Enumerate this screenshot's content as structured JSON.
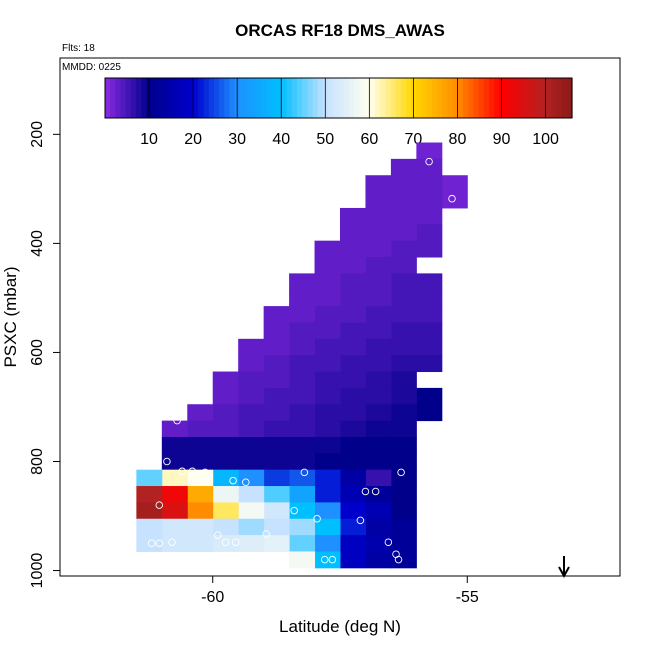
{
  "chart_data": {
    "type": "heatmap",
    "title": "ORCAS RF18 DMS_AWAS",
    "flights_label": "Flts: 18",
    "date_label": "MMDD: 0225",
    "xlabel": "Latitude (deg N)",
    "ylabel": "PSXC (mbar)",
    "xlim": [
      -63,
      -52
    ],
    "ylim": [
      1010,
      60
    ],
    "x_ticks": [
      -60,
      -55
    ],
    "y_ticks": [
      200,
      400,
      600,
      800,
      1000
    ],
    "colorbar": {
      "ticks": [
        10,
        20,
        30,
        40,
        50,
        60,
        70,
        80,
        90,
        100
      ],
      "min": 0,
      "max": 106,
      "stops": [
        {
          "v": 0,
          "c": "#8a2be2"
        },
        {
          "v": 10,
          "c": "#00008b"
        },
        {
          "v": 20,
          "c": "#0000cd"
        },
        {
          "v": 30,
          "c": "#1e90ff"
        },
        {
          "v": 40,
          "c": "#00bfff"
        },
        {
          "v": 50,
          "c": "#c6e2ff"
        },
        {
          "v": 60,
          "c": "#fffff0"
        },
        {
          "v": 70,
          "c": "#ffd700"
        },
        {
          "v": 80,
          "c": "#ff8c00"
        },
        {
          "v": 90,
          "c": "#ff0000"
        },
        {
          "v": 100,
          "c": "#b22222"
        },
        {
          "v": 106,
          "c": "#8b1a1a"
        }
      ]
    },
    "arrow_latitude": -53.1,
    "bins": {
      "lat_start": -61.25,
      "lat_width": 0.5,
      "p_start": 207.5,
      "p_width": 30
    },
    "cells": [
      {
        "lat": -55.75,
        "p": 230,
        "v": 2
      },
      {
        "lat": -55.75,
        "p": 260,
        "v": 3
      },
      {
        "lat": -56.25,
        "p": 260,
        "v": 3
      },
      {
        "lat": -55.25,
        "p": 290,
        "v": 2
      },
      {
        "lat": -55.75,
        "p": 290,
        "v": 3
      },
      {
        "lat": -56.25,
        "p": 290,
        "v": 3
      },
      {
        "lat": -56.75,
        "p": 290,
        "v": 3
      },
      {
        "lat": -55.25,
        "p": 320,
        "v": 2
      },
      {
        "lat": -55.75,
        "p": 320,
        "v": 3
      },
      {
        "lat": -56.25,
        "p": 320,
        "v": 3
      },
      {
        "lat": -56.75,
        "p": 320,
        "v": 3
      },
      {
        "lat": -55.75,
        "p": 350,
        "v": 3
      },
      {
        "lat": -56.25,
        "p": 350,
        "v": 3
      },
      {
        "lat": -56.75,
        "p": 350,
        "v": 3
      },
      {
        "lat": -57.25,
        "p": 350,
        "v": 3
      },
      {
        "lat": -55.75,
        "p": 380,
        "v": 4
      },
      {
        "lat": -56.25,
        "p": 380,
        "v": 3
      },
      {
        "lat": -56.75,
        "p": 380,
        "v": 3
      },
      {
        "lat": -57.25,
        "p": 380,
        "v": 3
      },
      {
        "lat": -55.75,
        "p": 410,
        "v": 4
      },
      {
        "lat": -56.25,
        "p": 410,
        "v": 4
      },
      {
        "lat": -56.75,
        "p": 410,
        "v": 3
      },
      {
        "lat": -57.25,
        "p": 410,
        "v": 3
      },
      {
        "lat": -57.75,
        "p": 410,
        "v": 3
      },
      {
        "lat": -56.25,
        "p": 440,
        "v": 4
      },
      {
        "lat": -56.75,
        "p": 440,
        "v": 4
      },
      {
        "lat": -57.25,
        "p": 440,
        "v": 3
      },
      {
        "lat": -57.75,
        "p": 440,
        "v": 3
      },
      {
        "lat": -55.75,
        "p": 470,
        "v": 5
      },
      {
        "lat": -56.25,
        "p": 470,
        "v": 5
      },
      {
        "lat": -56.75,
        "p": 470,
        "v": 4
      },
      {
        "lat": -57.25,
        "p": 470,
        "v": 4
      },
      {
        "lat": -57.75,
        "p": 470,
        "v": 3
      },
      {
        "lat": -58.25,
        "p": 470,
        "v": 3
      },
      {
        "lat": -55.75,
        "p": 500,
        "v": 5
      },
      {
        "lat": -56.25,
        "p": 500,
        "v": 5
      },
      {
        "lat": -56.75,
        "p": 500,
        "v": 4
      },
      {
        "lat": -57.25,
        "p": 500,
        "v": 4
      },
      {
        "lat": -57.75,
        "p": 500,
        "v": 3
      },
      {
        "lat": -58.25,
        "p": 500,
        "v": 3
      },
      {
        "lat": -55.75,
        "p": 530,
        "v": 5
      },
      {
        "lat": -56.25,
        "p": 530,
        "v": 5
      },
      {
        "lat": -56.75,
        "p": 530,
        "v": 5
      },
      {
        "lat": -57.25,
        "p": 530,
        "v": 4
      },
      {
        "lat": -57.75,
        "p": 530,
        "v": 4
      },
      {
        "lat": -58.25,
        "p": 530,
        "v": 3
      },
      {
        "lat": -58.75,
        "p": 530,
        "v": 3
      },
      {
        "lat": -55.75,
        "p": 560,
        "v": 6
      },
      {
        "lat": -56.25,
        "p": 560,
        "v": 6
      },
      {
        "lat": -56.75,
        "p": 560,
        "v": 5
      },
      {
        "lat": -57.25,
        "p": 560,
        "v": 5
      },
      {
        "lat": -57.75,
        "p": 560,
        "v": 4
      },
      {
        "lat": -58.25,
        "p": 560,
        "v": 4
      },
      {
        "lat": -58.75,
        "p": 560,
        "v": 3
      },
      {
        "lat": -55.75,
        "p": 590,
        "v": 6
      },
      {
        "lat": -56.25,
        "p": 590,
        "v": 6
      },
      {
        "lat": -56.75,
        "p": 590,
        "v": 6
      },
      {
        "lat": -57.25,
        "p": 590,
        "v": 5
      },
      {
        "lat": -57.75,
        "p": 590,
        "v": 5
      },
      {
        "lat": -58.25,
        "p": 590,
        "v": 4
      },
      {
        "lat": -58.75,
        "p": 590,
        "v": 3
      },
      {
        "lat": -59.25,
        "p": 590,
        "v": 3
      },
      {
        "lat": -55.75,
        "p": 620,
        "v": 7
      },
      {
        "lat": -56.25,
        "p": 620,
        "v": 7
      },
      {
        "lat": -56.75,
        "p": 620,
        "v": 6
      },
      {
        "lat": -57.25,
        "p": 620,
        "v": 6
      },
      {
        "lat": -57.75,
        "p": 620,
        "v": 5
      },
      {
        "lat": -58.25,
        "p": 620,
        "v": 5
      },
      {
        "lat": -58.75,
        "p": 620,
        "v": 4
      },
      {
        "lat": -59.25,
        "p": 620,
        "v": 3
      },
      {
        "lat": -56.25,
        "p": 650,
        "v": 8
      },
      {
        "lat": -56.75,
        "p": 650,
        "v": 7
      },
      {
        "lat": -57.25,
        "p": 650,
        "v": 6
      },
      {
        "lat": -57.75,
        "p": 650,
        "v": 6
      },
      {
        "lat": -58.25,
        "p": 650,
        "v": 5
      },
      {
        "lat": -58.75,
        "p": 650,
        "v": 4
      },
      {
        "lat": -59.25,
        "p": 650,
        "v": 4
      },
      {
        "lat": -59.75,
        "p": 650,
        "v": 3
      },
      {
        "lat": -55.75,
        "p": 680,
        "v": 10
      },
      {
        "lat": -56.25,
        "p": 680,
        "v": 8
      },
      {
        "lat": -56.75,
        "p": 680,
        "v": 7
      },
      {
        "lat": -57.25,
        "p": 680,
        "v": 7
      },
      {
        "lat": -57.75,
        "p": 680,
        "v": 6
      },
      {
        "lat": -58.25,
        "p": 680,
        "v": 5
      },
      {
        "lat": -58.75,
        "p": 680,
        "v": 5
      },
      {
        "lat": -59.25,
        "p": 680,
        "v": 4
      },
      {
        "lat": -59.75,
        "p": 680,
        "v": 3
      },
      {
        "lat": -55.75,
        "p": 710,
        "v": 10
      },
      {
        "lat": -56.25,
        "p": 710,
        "v": 9
      },
      {
        "lat": -56.75,
        "p": 710,
        "v": 8
      },
      {
        "lat": -57.25,
        "p": 710,
        "v": 7
      },
      {
        "lat": -57.75,
        "p": 710,
        "v": 7
      },
      {
        "lat": -58.25,
        "p": 710,
        "v": 6
      },
      {
        "lat": -58.75,
        "p": 710,
        "v": 5
      },
      {
        "lat": -59.25,
        "p": 710,
        "v": 5
      },
      {
        "lat": -59.75,
        "p": 710,
        "v": 4
      },
      {
        "lat": -60.25,
        "p": 710,
        "v": 3
      },
      {
        "lat": -56.25,
        "p": 740,
        "v": 9
      },
      {
        "lat": -56.75,
        "p": 740,
        "v": 9
      },
      {
        "lat": -57.25,
        "p": 740,
        "v": 8
      },
      {
        "lat": -57.75,
        "p": 740,
        "v": 7
      },
      {
        "lat": -58.25,
        "p": 740,
        "v": 6
      },
      {
        "lat": -58.75,
        "p": 740,
        "v": 6
      },
      {
        "lat": -59.25,
        "p": 740,
        "v": 5
      },
      {
        "lat": -59.75,
        "p": 740,
        "v": 4
      },
      {
        "lat": -60.25,
        "p": 740,
        "v": 4
      },
      {
        "lat": -60.75,
        "p": 740,
        "v": 3
      },
      {
        "lat": -56.25,
        "p": 770,
        "v": 10
      },
      {
        "lat": -56.75,
        "p": 770,
        "v": 10
      },
      {
        "lat": -57.25,
        "p": 770,
        "v": 10
      },
      {
        "lat": -57.75,
        "p": 770,
        "v": 9
      },
      {
        "lat": -58.25,
        "p": 770,
        "v": 9
      },
      {
        "lat": -58.75,
        "p": 770,
        "v": 9
      },
      {
        "lat": -59.25,
        "p": 770,
        "v": 9
      },
      {
        "lat": -59.75,
        "p": 770,
        "v": 9
      },
      {
        "lat": -60.25,
        "p": 770,
        "v": 9
      },
      {
        "lat": -60.75,
        "p": 770,
        "v": 9
      },
      {
        "lat": -56.25,
        "p": 800,
        "v": 10
      },
      {
        "lat": -56.75,
        "p": 800,
        "v": 10
      },
      {
        "lat": -57.25,
        "p": 800,
        "v": 10
      },
      {
        "lat": -57.75,
        "p": 800,
        "v": 10
      },
      {
        "lat": -58.25,
        "p": 800,
        "v": 9
      },
      {
        "lat": -58.75,
        "p": 800,
        "v": 9
      },
      {
        "lat": -59.25,
        "p": 800,
        "v": 9
      },
      {
        "lat": -59.75,
        "p": 800,
        "v": 9
      },
      {
        "lat": -60.25,
        "p": 800,
        "v": 9
      },
      {
        "lat": -60.75,
        "p": 800,
        "v": 9
      },
      {
        "lat": -56.25,
        "p": 830,
        "v": 10
      },
      {
        "lat": -56.75,
        "p": 830,
        "v": 6
      },
      {
        "lat": -57.25,
        "p": 830,
        "v": 14
      },
      {
        "lat": -57.75,
        "p": 830,
        "v": 22
      },
      {
        "lat": -58.25,
        "p": 830,
        "v": 26
      },
      {
        "lat": -58.75,
        "p": 830,
        "v": 24
      },
      {
        "lat": -59.25,
        "p": 830,
        "v": 30
      },
      {
        "lat": -59.75,
        "p": 830,
        "v": 38
      },
      {
        "lat": -60.25,
        "p": 830,
        "v": 60
      },
      {
        "lat": -60.75,
        "p": 830,
        "v": 62
      },
      {
        "lat": -61.25,
        "p": 830,
        "v": 45
      },
      {
        "lat": -56.25,
        "p": 860,
        "v": 10
      },
      {
        "lat": -56.75,
        "p": 860,
        "v": 12
      },
      {
        "lat": -57.25,
        "p": 860,
        "v": 16
      },
      {
        "lat": -57.75,
        "p": 860,
        "v": 22
      },
      {
        "lat": -58.25,
        "p": 860,
        "v": 34
      },
      {
        "lat": -58.75,
        "p": 860,
        "v": 44
      },
      {
        "lat": -59.25,
        "p": 860,
        "v": 50
      },
      {
        "lat": -59.75,
        "p": 860,
        "v": 57
      },
      {
        "lat": -60.25,
        "p": 860,
        "v": 76
      },
      {
        "lat": -60.75,
        "p": 860,
        "v": 92
      },
      {
        "lat": -61.25,
        "p": 860,
        "v": 100
      },
      {
        "lat": -56.25,
        "p": 890,
        "v": 10
      },
      {
        "lat": -56.75,
        "p": 890,
        "v": 16
      },
      {
        "lat": -57.25,
        "p": 890,
        "v": 20
      },
      {
        "lat": -57.75,
        "p": 890,
        "v": 30
      },
      {
        "lat": -58.25,
        "p": 890,
        "v": 40
      },
      {
        "lat": -58.75,
        "p": 890,
        "v": 52
      },
      {
        "lat": -59.25,
        "p": 890,
        "v": 58
      },
      {
        "lat": -59.75,
        "p": 890,
        "v": 66
      },
      {
        "lat": -60.25,
        "p": 890,
        "v": 80
      },
      {
        "lat": -60.75,
        "p": 890,
        "v": 95
      },
      {
        "lat": -61.25,
        "p": 890,
        "v": 102
      },
      {
        "lat": -56.25,
        "p": 920,
        "v": 12
      },
      {
        "lat": -56.75,
        "p": 920,
        "v": 14
      },
      {
        "lat": -57.25,
        "p": 920,
        "v": 22
      },
      {
        "lat": -57.75,
        "p": 920,
        "v": 40
      },
      {
        "lat": -58.25,
        "p": 920,
        "v": 48
      },
      {
        "lat": -58.75,
        "p": 920,
        "v": 50
      },
      {
        "lat": -59.25,
        "p": 920,
        "v": 48
      },
      {
        "lat": -59.75,
        "p": 920,
        "v": 50
      },
      {
        "lat": -60.25,
        "p": 920,
        "v": 52
      },
      {
        "lat": -60.75,
        "p": 920,
        "v": 52
      },
      {
        "lat": -61.25,
        "p": 920,
        "v": 50
      },
      {
        "lat": -56.25,
        "p": 950,
        "v": 12
      },
      {
        "lat": -56.75,
        "p": 950,
        "v": 15
      },
      {
        "lat": -57.25,
        "p": 950,
        "v": 18
      },
      {
        "lat": -57.75,
        "p": 950,
        "v": 30
      },
      {
        "lat": -58.25,
        "p": 950,
        "v": 45
      },
      {
        "lat": -58.75,
        "p": 950,
        "v": 55
      },
      {
        "lat": -59.25,
        "p": 950,
        "v": 54
      },
      {
        "lat": -59.75,
        "p": 950,
        "v": 53
      },
      {
        "lat": -60.25,
        "p": 950,
        "v": 52
      },
      {
        "lat": -60.75,
        "p": 950,
        "v": 52
      },
      {
        "lat": -61.25,
        "p": 950,
        "v": 50
      },
      {
        "lat": -56.25,
        "p": 980,
        "v": 12
      },
      {
        "lat": -56.75,
        "p": 980,
        "v": 14
      },
      {
        "lat": -57.25,
        "p": 980,
        "v": 18
      },
      {
        "lat": -57.75,
        "p": 980,
        "v": 40
      },
      {
        "lat": -58.25,
        "p": 980,
        "v": 58
      }
    ],
    "points": [
      {
        "lat": -55.75,
        "p": 250
      },
      {
        "lat": -55.3,
        "p": 318
      },
      {
        "lat": -60.7,
        "p": 725
      },
      {
        "lat": -60.9,
        "p": 800
      },
      {
        "lat": -60.6,
        "p": 818
      },
      {
        "lat": -60.4,
        "p": 818
      },
      {
        "lat": -60.15,
        "p": 820
      },
      {
        "lat": -60.2,
        "p": 833
      },
      {
        "lat": -59.6,
        "p": 835
      },
      {
        "lat": -59.35,
        "p": 838
      },
      {
        "lat": -58.2,
        "p": 820
      },
      {
        "lat": -56.3,
        "p": 820
      },
      {
        "lat": -57.0,
        "p": 855
      },
      {
        "lat": -56.8,
        "p": 855
      },
      {
        "lat": -61.05,
        "p": 880
      },
      {
        "lat": -58.4,
        "p": 890
      },
      {
        "lat": -57.95,
        "p": 905
      },
      {
        "lat": -57.1,
        "p": 908
      },
      {
        "lat": -58.95,
        "p": 933
      },
      {
        "lat": -59.9,
        "p": 935
      },
      {
        "lat": -59.75,
        "p": 948
      },
      {
        "lat": -59.55,
        "p": 948
      },
      {
        "lat": -60.8,
        "p": 948
      },
      {
        "lat": -61.2,
        "p": 950
      },
      {
        "lat": -61.05,
        "p": 950
      },
      {
        "lat": -56.55,
        "p": 948
      },
      {
        "lat": -56.4,
        "p": 970
      },
      {
        "lat": -56.35,
        "p": 980
      },
      {
        "lat": -57.8,
        "p": 980
      },
      {
        "lat": -57.65,
        "p": 980
      }
    ]
  }
}
